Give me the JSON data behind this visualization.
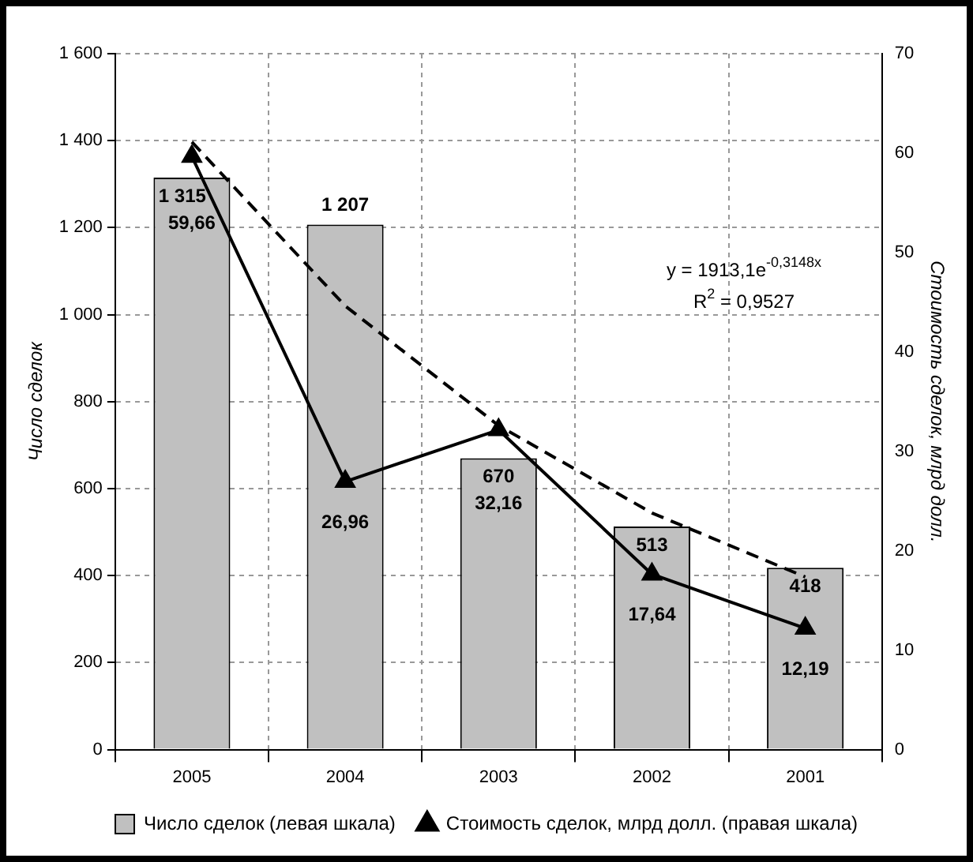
{
  "chart_data": {
    "type": "bar",
    "categories": [
      "2005",
      "2004",
      "2003",
      "2002",
      "2001"
    ],
    "ylabel": "Число сделок",
    "y2label": "Стоимость сделок, млрд долл.",
    "series": [
      {
        "name": "Число сделок (левая шкала)",
        "color": "#c0c0c0",
        "values": [
          1315,
          1207,
          670,
          513,
          418
        ],
        "value_labels": [
          "1 315",
          "1 207",
          "670",
          "513",
          "418"
        ]
      },
      {
        "name": "Стоимость сделок, млрд долл. (правая шкала)",
        "type": "line",
        "axis": "y2",
        "color": "#000000",
        "marker": "triangle",
        "values": [
          59.66,
          26.96,
          32.16,
          17.64,
          12.19
        ],
        "value_labels": [
          "59,66",
          "26,96",
          "32,16",
          "17,64",
          "12,19"
        ]
      },
      {
        "type": "line",
        "color": "#000000",
        "line_style": "dashed",
        "marker": "none",
        "values": [
          1397,
          1020,
          745,
          544,
          397
        ]
      }
    ],
    "ylim": [
      0,
      1600
    ],
    "yticks": [
      0,
      200,
      400,
      600,
      800,
      {
        "value": 1000,
        "label": "1 000"
      },
      {
        "value": 1200,
        "label": "1 200"
      },
      {
        "value": 1400,
        "label": "1 400"
      },
      {
        "value": 1600,
        "label": "1 600"
      }
    ],
    "y2lim": [
      0,
      70
    ],
    "y2ticks": [
      0,
      10,
      20,
      30,
      40,
      50,
      60,
      70
    ],
    "annotations": [
      "y = 1913,1e$^{-0,3148x}$",
      "R$^{2}$ = 0,9527"
    ],
    "grid": true,
    "legend": "bottom"
  }
}
